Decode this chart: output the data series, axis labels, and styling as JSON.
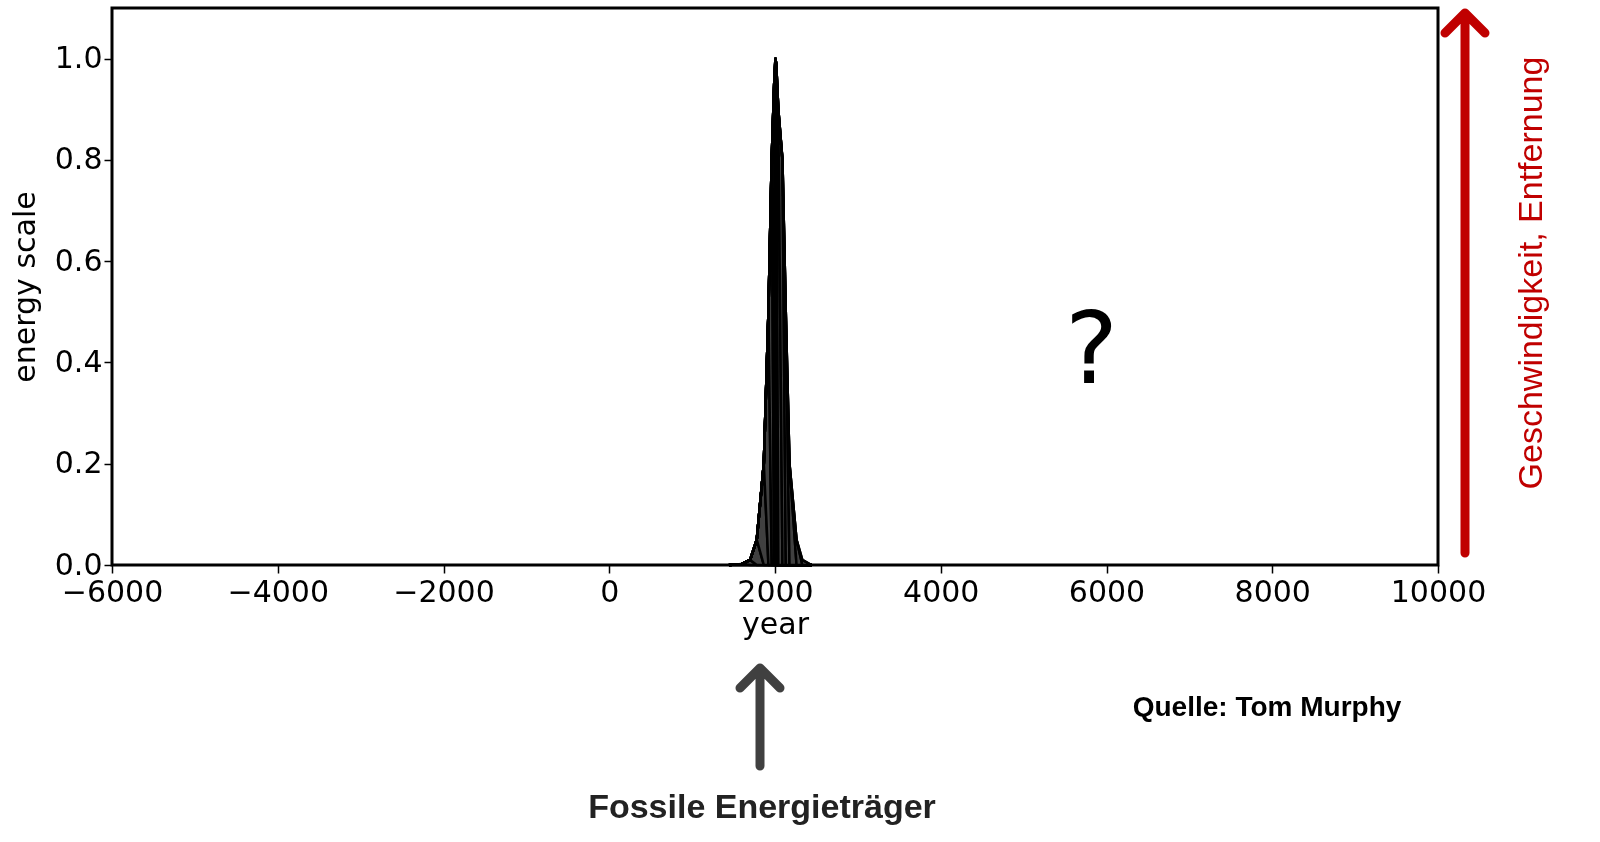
{
  "chart_data": {
    "type": "area",
    "xlabel": "year",
    "ylabel": "energy scale",
    "xlim": [
      -6000,
      10000
    ],
    "ylim": [
      0,
      1.1
    ],
    "xticks": [
      {
        "value": -6000,
        "label": "−6000"
      },
      {
        "value": -4000,
        "label": "−4000"
      },
      {
        "value": -2000,
        "label": "−2000"
      },
      0,
      2000,
      4000,
      6000,
      8000,
      10000
    ],
    "yticks": [
      {
        "value": 0,
        "label": "0.0"
      },
      0.2,
      0.4,
      0.6,
      0.8,
      {
        "value": 1,
        "label": "1.0"
      }
    ],
    "grid": false,
    "series": [
      {
        "color": "#404040",
        "x": [
          1450,
          1600,
          1700,
          1780,
          1865,
          1921,
          1960,
          1990,
          2005,
          2015,
          2040,
          2090,
          2130,
          2175,
          2260,
          2330,
          2440
        ],
        "values": [
          0,
          0.002,
          0.01,
          0.05,
          0.2,
          0.5,
          0.8,
          0.95,
          1.0,
          0.99,
          0.9,
          0.8,
          0.5,
          0.2,
          0.05,
          0.01,
          0
        ]
      }
    ],
    "annotations": [
      "?",
      "Fossile Energieträger",
      "Geschwindigkeit, Entfernung",
      "Quelle: Tom Murphy"
    ]
  }
}
